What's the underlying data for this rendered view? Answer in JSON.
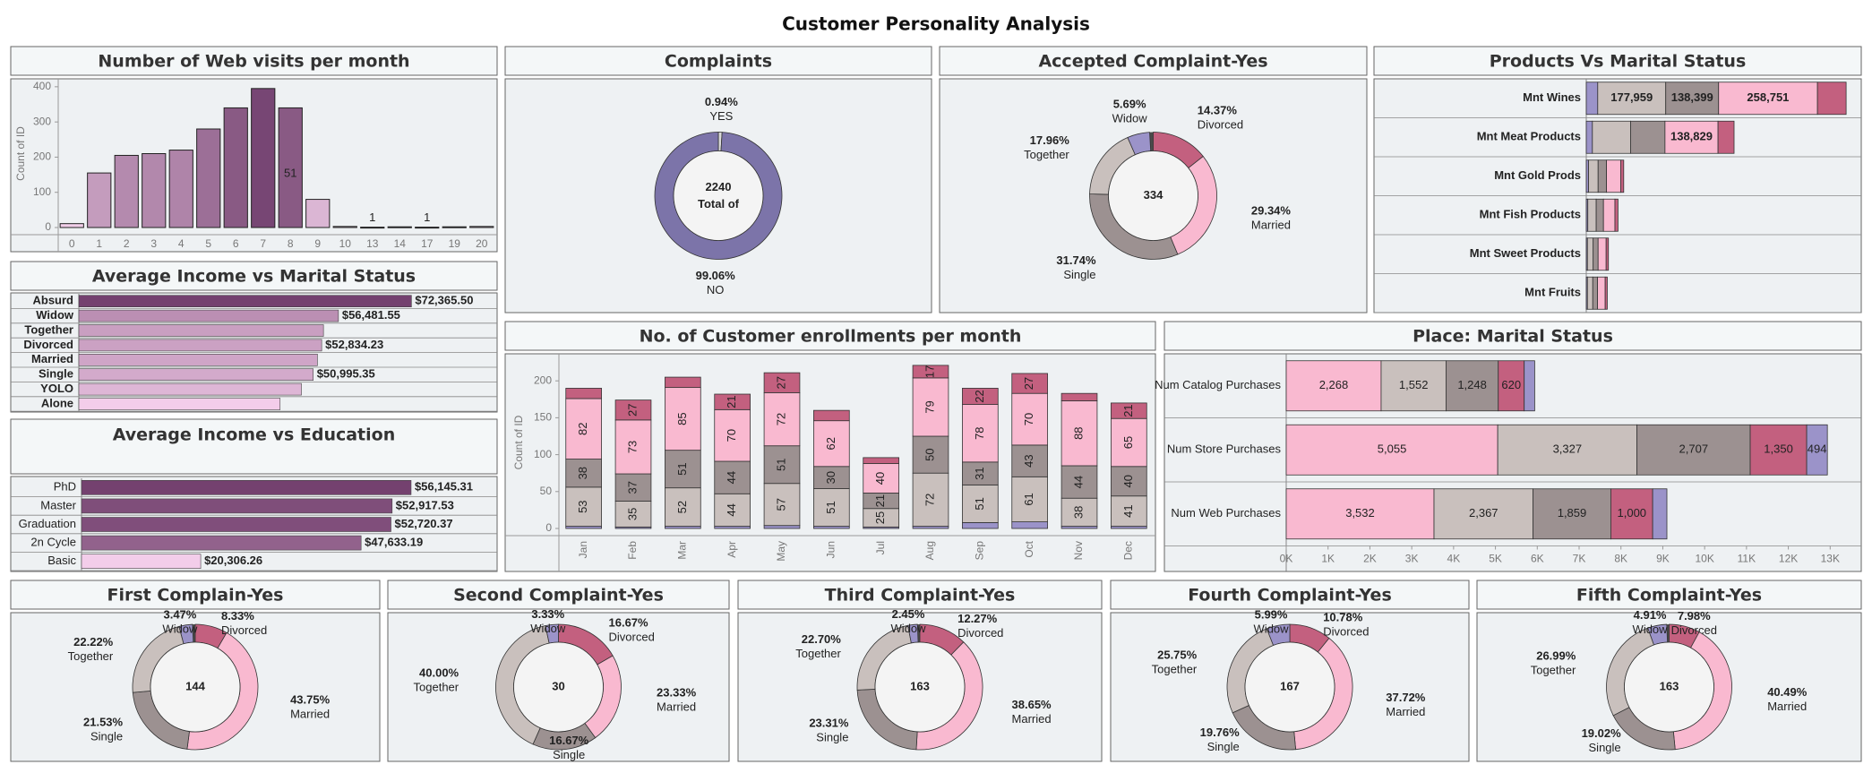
{
  "title": "Customer Personality Analysis",
  "chart_data": [
    {
      "type": "bar",
      "title": "Number of Web visits per month",
      "ylabel": "Count of ID",
      "categories": [
        "0",
        "1",
        "2",
        "3",
        "4",
        "5",
        "6",
        "7",
        "8",
        "9",
        "10",
        "13",
        "14",
        "17",
        "19",
        "20"
      ],
      "values": [
        11,
        155,
        205,
        210,
        220,
        280,
        340,
        395,
        340,
        80,
        3,
        1,
        2,
        1,
        2,
        3
      ],
      "value_labels": [
        null,
        null,
        null,
        null,
        null,
        null,
        null,
        null,
        null,
        null,
        null,
        "1",
        null,
        "1",
        null,
        null
      ],
      "annotations": [
        {
          "category": "8",
          "text": "51"
        }
      ],
      "ylim": [
        0,
        420
      ],
      "yticks": [
        0,
        100,
        200,
        300,
        400
      ]
    },
    {
      "type": "donut",
      "title": "Complaints",
      "categories": [
        "YES",
        "NO"
      ],
      "values": [
        0.94,
        99.06
      ],
      "value_labels": [
        "0.94%",
        "99.06%"
      ],
      "colors": [
        "#d9d9d9",
        "#7c74a9"
      ],
      "total": 2240,
      "total_label": "Total of"
    },
    {
      "type": "donut",
      "title": "Accepted Complaint-Yes",
      "categories": [
        "Divorced",
        "Married",
        "Single",
        "Together",
        "Widow"
      ],
      "values": [
        14.37,
        29.34,
        31.74,
        17.96,
        5.69
      ],
      "value_labels": [
        "14.37%",
        "29.34%",
        "31.74%",
        "17.96%",
        "5.69%"
      ],
      "colors": [
        "#c3607f",
        "#f9b9d0",
        "#9c9191",
        "#c9c0bd",
        "#9b93c9"
      ],
      "total": 334
    },
    {
      "type": "hbar",
      "title": "Products Vs Marital Status",
      "categories": [
        "Mnt Wines",
        "Mnt Meat Products",
        "Mnt Gold Prods",
        "Mnt Fish Products",
        "Mnt Sweet Products",
        "Mnt Fruits"
      ],
      "xlim": [
        0,
        715000
      ],
      "series": [
        {
          "color": "#9b93c9",
          "values": [
            30000,
            16000,
            6000,
            4000,
            3000,
            3000
          ],
          "value_labels": [
            null,
            null,
            null,
            null,
            null,
            null
          ]
        },
        {
          "color": "#c9c0bd",
          "values": [
            177959,
            100000,
            25000,
            22000,
            15000,
            14000
          ],
          "value_labels": [
            "177,959",
            null,
            null,
            null,
            null,
            null
          ]
        },
        {
          "color": "#9c9191",
          "values": [
            138399,
            90000,
            22000,
            19000,
            13000,
            12500
          ],
          "value_labels": [
            "138,399",
            null,
            null,
            null,
            null,
            null
          ]
        },
        {
          "color": "#f9b9d0",
          "values": [
            258751,
            138829,
            37000,
            30000,
            21000,
            20000
          ],
          "value_labels": [
            "258,751",
            "138,829",
            null,
            null,
            null,
            null
          ]
        },
        {
          "color": "#c3607f",
          "values": [
            75000,
            42000,
            8000,
            8000,
            6000,
            5500
          ],
          "value_labels": [
            null,
            null,
            null,
            null,
            null,
            null
          ]
        }
      ]
    },
    {
      "type": "hbar",
      "title": "Average Income vs Marital Status",
      "categories": [
        "Absurd",
        "Widow",
        "Together",
        "Divorced",
        "Married",
        "Single",
        "YOLO",
        "Alone"
      ],
      "values": [
        72365.5,
        56481.55,
        53225,
        52834.23,
        51914,
        50995.35,
        48432,
        43789
      ],
      "value_labels": [
        "$72,365.50",
        "$56,481.55",
        null,
        "$52,834.23",
        null,
        "$50,995.35",
        null,
        null
      ],
      "xlim": [
        0,
        91000
      ]
    },
    {
      "type": "hbar",
      "title": "Average Income vs Education",
      "categories": [
        "PhD",
        "Master",
        "Graduation",
        "2n Cycle",
        "Basic"
      ],
      "values": [
        56145.31,
        52917.53,
        52720.37,
        47633.19,
        20306.26
      ],
      "value_labels": [
        "$56,145.31",
        "$52,917.53",
        "$52,720.37",
        "$47,633.19",
        "$20,306.26"
      ],
      "xlim": [
        0,
        70800
      ]
    },
    {
      "type": "bar",
      "title": "No. of Customer enrollments per month",
      "ylabel": "Count of ID",
      "categories": [
        "Jan",
        "Feb",
        "Mar",
        "Apr",
        "May",
        "Jun",
        "Jul",
        "Aug",
        "Sep",
        "Oct",
        "Nov",
        "Dec"
      ],
      "ylim": [
        0,
        233
      ],
      "yticks": [
        0,
        50,
        100,
        150,
        200
      ],
      "series": [
        {
          "color": "#9b93c9",
          "values": [
            3,
            2,
            3,
            3,
            4,
            3,
            2,
            3,
            8,
            9,
            3,
            3
          ]
        },
        {
          "color": "#c9c0bd",
          "values": [
            53,
            35,
            52,
            44,
            57,
            51,
            25,
            72,
            51,
            61,
            38,
            41
          ]
        },
        {
          "color": "#9c9191",
          "values": [
            38,
            37,
            51,
            44,
            51,
            30,
            21,
            50,
            31,
            43,
            44,
            40
          ]
        },
        {
          "color": "#f9b9d0",
          "values": [
            82,
            73,
            85,
            70,
            72,
            62,
            40,
            79,
            78,
            70,
            88,
            65
          ]
        },
        {
          "color": "#c3607f",
          "values": [
            14,
            27,
            14,
            21,
            27,
            14,
            8,
            17,
            22,
            27,
            10,
            21
          ]
        }
      ]
    },
    {
      "type": "hbar",
      "title": "Place: Marital Status",
      "categories": [
        "Num Catalog Purchases",
        "Num Store Purchases",
        "Num Web Purchases"
      ],
      "xlim": [
        0,
        13700
      ],
      "xticks": [
        {
          "value": 0,
          "label": "0K"
        },
        {
          "value": 1000,
          "label": "1K"
        },
        {
          "value": 2000,
          "label": "2K"
        },
        {
          "value": 3000,
          "label": "3K"
        },
        {
          "value": 4000,
          "label": "4K"
        },
        {
          "value": 5000,
          "label": "5K"
        },
        {
          "value": 6000,
          "label": "6K"
        },
        {
          "value": 7000,
          "label": "7K"
        },
        {
          "value": 8000,
          "label": "8K"
        },
        {
          "value": 9000,
          "label": "9K"
        },
        {
          "value": 10000,
          "label": "10K"
        },
        {
          "value": 11000,
          "label": "11K"
        },
        {
          "value": 12000,
          "label": "12K"
        },
        {
          "value": 13000,
          "label": "13K"
        }
      ],
      "series": [
        {
          "color": "#f9b9d0",
          "values": [
            2268,
            5055,
            3532
          ],
          "value_labels": [
            "2,268",
            "5,055",
            "3,532"
          ]
        },
        {
          "color": "#c9c0bd",
          "values": [
            1552,
            3327,
            2367
          ],
          "value_labels": [
            "1,552",
            "3,327",
            "2,367"
          ]
        },
        {
          "color": "#9c9191",
          "values": [
            1248,
            2707,
            1859
          ],
          "value_labels": [
            "1,248",
            "2,707",
            "1,859"
          ]
        },
        {
          "color": "#c3607f",
          "values": [
            620,
            1350,
            1000
          ],
          "value_labels": [
            "620",
            "1,350",
            "1,000"
          ]
        },
        {
          "color": "#9b93c9",
          "values": [
            250,
            494,
            340
          ],
          "value_labels": [
            null,
            "494",
            null
          ]
        }
      ]
    },
    {
      "type": "donut",
      "title": "First Complain-Yes",
      "categories": [
        "Divorced",
        "Married",
        "Single",
        "Together",
        "Widow"
      ],
      "values": [
        8.33,
        43.75,
        21.53,
        22.22,
        3.47
      ],
      "value_labels": [
        "8.33%",
        "43.75%",
        "21.53%",
        "22.22%",
        "3.47%"
      ],
      "colors": [
        "#c3607f",
        "#f9b9d0",
        "#9c9191",
        "#c9c0bd",
        "#9b93c9"
      ],
      "total": 144
    },
    {
      "type": "donut",
      "title": "Second Complaint-Yes",
      "categories": [
        "Divorced",
        "Married",
        "Single",
        "Together",
        "Widow"
      ],
      "values": [
        16.67,
        23.33,
        16.67,
        40.0,
        3.33
      ],
      "value_labels": [
        "16.67%",
        "23.33%",
        "16.67%",
        "40.00%",
        "3.33%"
      ],
      "colors": [
        "#c3607f",
        "#f9b9d0",
        "#9c9191",
        "#c9c0bd",
        "#9b93c9"
      ],
      "total": 30
    },
    {
      "type": "donut",
      "title": "Third Complaint-Yes",
      "categories": [
        "Divorced",
        "Married",
        "Single",
        "Together",
        "Widow"
      ],
      "values": [
        12.27,
        38.65,
        23.31,
        22.7,
        2.45
      ],
      "value_labels": [
        "12.27%",
        "38.65%",
        "23.31%",
        "22.70%",
        "2.45%"
      ],
      "colors": [
        "#c3607f",
        "#f9b9d0",
        "#9c9191",
        "#c9c0bd",
        "#9b93c9"
      ],
      "total": 163
    },
    {
      "type": "donut",
      "title": "Fourth Complaint-Yes",
      "categories": [
        "Divorced",
        "Married",
        "Single",
        "Together",
        "Widow"
      ],
      "values": [
        10.78,
        37.72,
        19.76,
        25.75,
        5.99
      ],
      "value_labels": [
        "10.78%",
        "37.72%",
        "19.76%",
        "25.75%",
        "5.99%"
      ],
      "colors": [
        "#c3607f",
        "#f9b9d0",
        "#9c9191",
        "#c9c0bd",
        "#9b93c9"
      ],
      "total": 167
    },
    {
      "type": "donut",
      "title": "Fifth Complaint-Yes",
      "categories": [
        "Divorced",
        "Married",
        "Single",
        "Together",
        "Widow"
      ],
      "values": [
        7.98,
        40.49,
        19.02,
        26.99,
        4.91
      ],
      "value_labels": [
        "7.98%",
        "40.49%",
        "19.02%",
        "26.99%",
        "4.91%"
      ],
      "colors": [
        "#c3607f",
        "#f9b9d0",
        "#9c9191",
        "#c9c0bd",
        "#9b93c9"
      ],
      "total": 163
    }
  ]
}
